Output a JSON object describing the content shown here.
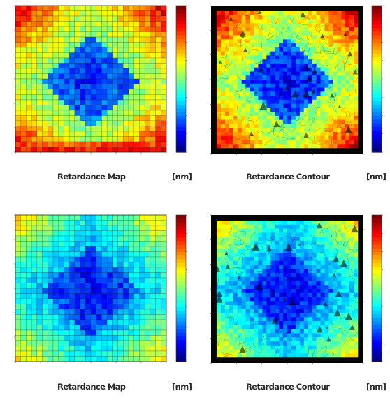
{
  "figure": {
    "captions": {
      "map": "Retardance Map",
      "contour": "Retardance Contour",
      "unit": "[nm]"
    }
  },
  "chart_data": [
    {
      "type": "heatmap",
      "title": "",
      "xlabel": "Retardance Map",
      "unit": "[nm]",
      "grid": true,
      "pattern": "central diamond of low retardance surrounded by higher values; highest along bottom edge",
      "rows": 28,
      "cols": 28,
      "range": [
        0,
        1
      ],
      "colormap": "jet",
      "center_value": 0.15,
      "ring_value": 0.5,
      "corner_boost": 0.15,
      "bottom_edge_value": 0.9,
      "noise": 0.07
    },
    {
      "type": "heatmap",
      "title": "",
      "xlabel": "Retardance Contour",
      "unit": "[nm]",
      "grid": false,
      "pattern": "streamline/contour texture of the same field with a dark border",
      "range": [
        0,
        1
      ],
      "colormap": "jet",
      "center_value": 0.12,
      "ring_value": 0.5,
      "corner_boost": 0.15,
      "bottom_edge_value": 0.55,
      "noise": 0.08
    },
    {
      "type": "heatmap",
      "title": "",
      "xlabel": "Retardance Map",
      "unit": "[nm]",
      "grid": true,
      "pattern": "central diamond of low retardance, overall lower values than upper map",
      "rows": 28,
      "cols": 28,
      "range": [
        0,
        1
      ],
      "colormap": "jet",
      "center_value": 0.12,
      "ring_value": 0.3,
      "corner_boost": 0.1,
      "bottom_edge_value": 0.3,
      "noise": 0.06
    },
    {
      "type": "heatmap",
      "title": "",
      "xlabel": "Retardance Contour",
      "unit": "[nm]",
      "grid": false,
      "pattern": "streamline/contour texture, mostly blue, lighter toward upper-right",
      "range": [
        0,
        1
      ],
      "colormap": "jet",
      "center_value": 0.1,
      "ring_value": 0.28,
      "corner_boost": 0.12,
      "bottom_edge_value": 0.25,
      "noise": 0.07
    }
  ],
  "colors": {
    "jet": [
      "#00007f",
      "#0000ff",
      "#007fff",
      "#00ffff",
      "#7fff7f",
      "#ffff00",
      "#ff7f00",
      "#ff0000",
      "#7f0000"
    ],
    "grid_line": "#1a1a1a",
    "contour_border": "#050505"
  }
}
